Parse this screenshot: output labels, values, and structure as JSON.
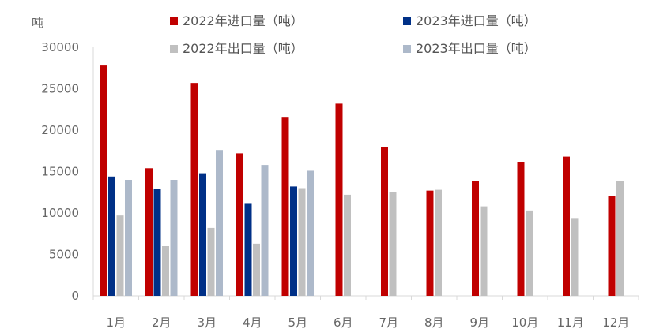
{
  "chart_data": {
    "type": "bar",
    "unit_label": "吨",
    "categories": [
      "1月",
      "2月",
      "3月",
      "4月",
      "5月",
      "6月",
      "7月",
      "8月",
      "9月",
      "10月",
      "11月",
      "12月"
    ],
    "series": [
      {
        "name": "2022年进口量（吨）",
        "color": "#C00000",
        "values": [
          27800,
          15400,
          25700,
          17200,
          21600,
          23200,
          18000,
          12700,
          13900,
          16100,
          16800,
          12000
        ]
      },
      {
        "name": "2023年进口量（吨）",
        "color": "#003087",
        "values": [
          14400,
          12900,
          14800,
          11100,
          13200,
          null,
          null,
          null,
          null,
          null,
          null,
          null
        ]
      },
      {
        "name": "2022年出口量（吨）",
        "color": "#C0C0C0",
        "values": [
          9700,
          6000,
          8200,
          6300,
          13000,
          12200,
          12500,
          12800,
          10800,
          10300,
          9300,
          13900
        ]
      },
      {
        "name": "2023年出口量（吨）",
        "color": "#ADB9CA",
        "values": [
          14000,
          14000,
          17600,
          15800,
          15100,
          null,
          null,
          null,
          null,
          null,
          null,
          null
        ]
      }
    ],
    "ylim": [
      0,
      30000
    ],
    "yticks": [
      0,
      5000,
      10000,
      15000,
      20000,
      25000,
      30000
    ],
    "legend_position": "top",
    "grid": false
  }
}
